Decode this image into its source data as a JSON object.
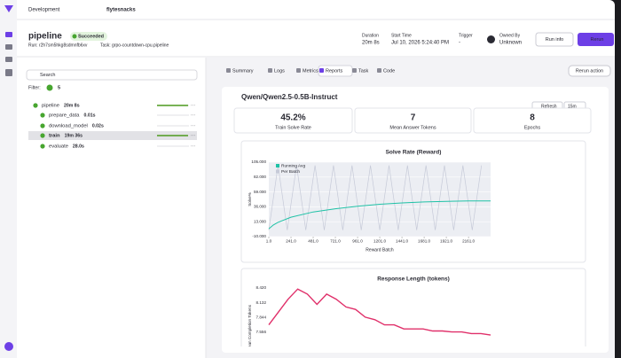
{
  "header": {
    "breadcrumbs": [
      "Development",
      "flytesnacks"
    ],
    "title": "pipeline",
    "status": "Succeeded",
    "run": "Run: r2h7sm5hkg8sdmnfb6xv",
    "task": "Task: grpo-countdown-cpu.pipeline",
    "meta": [
      {
        "label": "Duration",
        "value": "20m 8s"
      },
      {
        "label": "Start Time",
        "value": "Jul 10, 2026 5:24:40 PM"
      },
      {
        "label": "Trigger",
        "value": "-"
      },
      {
        "label": "Owned By",
        "value": "Unknown"
      }
    ],
    "buttons": [
      "Run info",
      "Rerun"
    ]
  },
  "sidebar": {
    "search": "Search",
    "filter_label": "Filter:",
    "filter_count": 5,
    "nodes": [
      {
        "name": "pipeline",
        "duration": "20m 8s"
      },
      {
        "name": "prepare_data",
        "duration": "0.01s"
      },
      {
        "name": "download_model",
        "duration": "0.02s"
      },
      {
        "name": "train",
        "duration": "19m 36s"
      },
      {
        "name": "evaluate",
        "duration": "28.0s"
      }
    ]
  },
  "tabs": [
    "Summary",
    "Logs",
    "Metrics",
    "Reports",
    "Task",
    "Code"
  ],
  "rerun_action": "Rerun action",
  "report": {
    "title": "Qwen/Qwen2.5-0.5B-Instruct",
    "refresh": "Refresh",
    "interval": "15m",
    "stats": [
      {
        "value": "45.2%",
        "label": "Train Solve Rate"
      },
      {
        "value": "7",
        "label": "Mean Answer Tokens"
      },
      {
        "value": "8",
        "label": "Epochs"
      }
    ],
    "charts": [
      {
        "type": "line",
        "title": "Solve Rate (Reward)",
        "y_label": "Solve%",
        "x_label": "Reward Batch",
        "xlim": [
          1,
          2400
        ],
        "ylim": [
          -10,
          105
        ],
        "yticks": [
          {
            "value": 105,
            "label": "105.000"
          },
          {
            "value": 82,
            "label": "82.000"
          },
          {
            "value": 59,
            "label": "59.000"
          },
          {
            "value": 36,
            "label": "36.000"
          },
          {
            "value": 13,
            "label": "13.000"
          },
          {
            "value": -10,
            "label": "-10.000"
          }
        ],
        "xticks": [
          {
            "value": 1,
            "label": "1.0"
          },
          {
            "value": 241,
            "label": "241.0"
          },
          {
            "value": 481,
            "label": "481.0"
          },
          {
            "value": 721,
            "label": "721.0"
          },
          {
            "value": 961,
            "label": "961.0"
          },
          {
            "value": 1201,
            "label": "1201.0"
          },
          {
            "value": 1441,
            "label": "1441.0"
          },
          {
            "value": 1681,
            "label": "1681.0"
          },
          {
            "value": 1921,
            "label": "1921.0"
          },
          {
            "value": 2161,
            "label": "2161.0"
          }
        ],
        "series": [
          {
            "name": "Running Avg",
            "color": "#1fc2a6",
            "x": [
              1,
              50,
              100,
              241,
              481,
              721,
              961,
              1201,
              1441,
              1681,
              1921,
              2161,
              2400
            ],
            "values": [
              2,
              8,
              12,
              20,
              28,
              33,
              37,
              40,
              42,
              43.5,
              44.5,
              45,
              45.2
            ]
          },
          {
            "name": "Per Batch",
            "color": "#c6cad8",
            "x": [
              1,
              101,
              201,
              301,
              401,
              501,
              601,
              701,
              801,
              901,
              1001,
              1101,
              1201,
              1301,
              1401,
              1501,
              1601,
              1701,
              1801,
              1901,
              2001,
              2101,
              2201,
              2301
            ],
            "values": [
              0,
              100,
              0,
              100,
              0,
              100,
              0,
              100,
              0,
              100,
              0,
              100,
              0,
              100,
              0,
              100,
              0,
              100,
              0,
              100,
              0,
              100,
              0,
              100
            ]
          }
        ]
      },
      {
        "type": "line",
        "title": "Response Length (tokens)",
        "y_label": "Mean Completion Tokens",
        "ylim": [
          7.268,
          8.42
        ],
        "yticks": [
          {
            "value": 8.42,
            "label": "8.420"
          },
          {
            "value": 8.132,
            "label": "8.132"
          },
          {
            "value": 7.844,
            "label": "7.844"
          },
          {
            "value": 7.556,
            "label": "7.556"
          }
        ],
        "series": [
          {
            "name": "Mean Completion Tokens",
            "color": "#e0306a",
            "values": [
              7.7,
              7.95,
              8.2,
              8.4,
              8.3,
              8.1,
              8.3,
              8.2,
              8.05,
              8.0,
              7.85,
              7.8,
              7.7,
              7.7,
              7.62,
              7.62,
              7.62,
              7.58,
              7.58,
              7.56,
              7.56,
              7.53,
              7.53,
              7.5
            ]
          }
        ]
      }
    ]
  }
}
